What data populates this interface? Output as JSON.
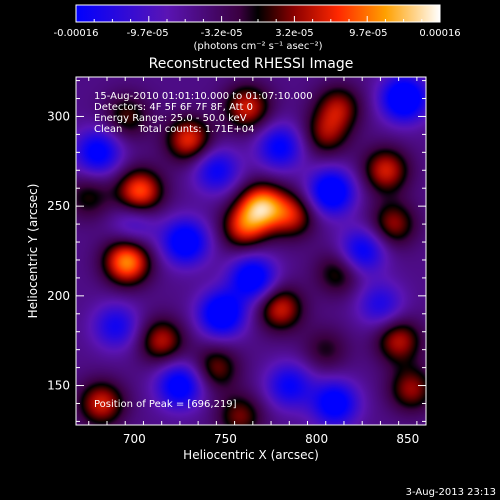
{
  "chart_data": {
    "type": "heatmap",
    "title": "Reconstructed RHESSI Image",
    "xlabel": "Heliocentric X (arcsec)",
    "ylabel": "Heliocentric Y (arcsec)",
    "xlim": [
      668,
      860
    ],
    "ylim": [
      128,
      322
    ],
    "x_ticks": [
      700,
      750,
      800,
      850
    ],
    "y_ticks": [
      150,
      200,
      250,
      300
    ],
    "annotations": {
      "time_range": "15-Aug-2010 01:01:10.000 to 01:07:10.000",
      "detectors": "Detectors: 4F 5F 6F 7F 8F, Att 0",
      "energy_range": "Energy Range: 25.0 - 50.0 keV",
      "clean_counts": "Clean     Total counts: 1.71E+04",
      "peak": "Position of Peak = [696,219]"
    },
    "peak_position": [
      696,
      219
    ],
    "colorbar": {
      "min": -0.00016,
      "max": 0.00016,
      "tick_labels": [
        "-0.00016",
        "-9.7e-05",
        "-3.2e-05",
        "3.2e-05",
        "9.7e-05",
        "0.00016"
      ],
      "tick_values": [
        -0.00016,
        -9.7e-05,
        -3.2e-05,
        3.2e-05,
        9.7e-05,
        0.00016
      ],
      "units": "(photons cm⁻² s⁻¹ asec⁻²)"
    },
    "blobs": [
      {
        "x": 696,
        "y": 219,
        "amp": 0.00016
      },
      {
        "x": 703,
        "y": 258,
        "amp": 0.00014
      },
      {
        "x": 770,
        "y": 250,
        "amp": 0.00016
      },
      {
        "x": 760,
        "y": 238,
        "amp": 0.00011
      },
      {
        "x": 787,
        "y": 245,
        "amp": 0.0001
      },
      {
        "x": 730,
        "y": 287,
        "amp": 0.00012
      },
      {
        "x": 762,
        "y": 305,
        "amp": 0.00011
      },
      {
        "x": 812,
        "y": 305,
        "amp": 9e-05
      },
      {
        "x": 838,
        "y": 270,
        "amp": 0.00011
      },
      {
        "x": 842,
        "y": 240,
        "amp": 9e-05
      },
      {
        "x": 696,
        "y": 300,
        "amp": 7e-05
      },
      {
        "x": 715,
        "y": 175,
        "amp": 0.0001
      },
      {
        "x": 780,
        "y": 193,
        "amp": 0.00011
      },
      {
        "x": 745,
        "y": 160,
        "amp": 8e-05
      },
      {
        "x": 845,
        "y": 175,
        "amp": 0.0001
      },
      {
        "x": 852,
        "y": 148,
        "amp": 9e-05
      },
      {
        "x": 682,
        "y": 140,
        "amp": 0.00011
      },
      {
        "x": 758,
        "y": 133,
        "amp": 8e-05
      },
      {
        "x": 812,
        "y": 213,
        "amp": 7e-05
      },
      {
        "x": 805,
        "y": 170,
        "amp": 5e-05
      },
      {
        "x": 805,
        "y": 290,
        "amp": 8e-05
      },
      {
        "x": 675,
        "y": 255,
        "amp": 6e-05
      },
      {
        "x": 728,
        "y": 230,
        "amp": -0.00014
      },
      {
        "x": 748,
        "y": 190,
        "amp": -0.00015
      },
      {
        "x": 765,
        "y": 210,
        "amp": -0.00014
      },
      {
        "x": 725,
        "y": 150,
        "amp": -0.00013
      },
      {
        "x": 808,
        "y": 258,
        "amp": -0.00015
      },
      {
        "x": 825,
        "y": 225,
        "amp": -0.00011
      },
      {
        "x": 810,
        "y": 140,
        "amp": -0.00013
      },
      {
        "x": 785,
        "y": 150,
        "amp": -0.0001
      },
      {
        "x": 848,
        "y": 310,
        "amp": -0.00016
      },
      {
        "x": 680,
        "y": 280,
        "amp": -0.00012
      },
      {
        "x": 690,
        "y": 183,
        "amp": -9e-05
      },
      {
        "x": 745,
        "y": 270,
        "amp": -0.0001
      },
      {
        "x": 835,
        "y": 195,
        "amp": -8e-05
      },
      {
        "x": 780,
        "y": 283,
        "amp": -0.00011
      },
      {
        "x": 700,
        "y": 240,
        "amp": -6e-05
      }
    ]
  },
  "footer": {
    "date_stamp": "3-Aug-2013 23:13"
  }
}
